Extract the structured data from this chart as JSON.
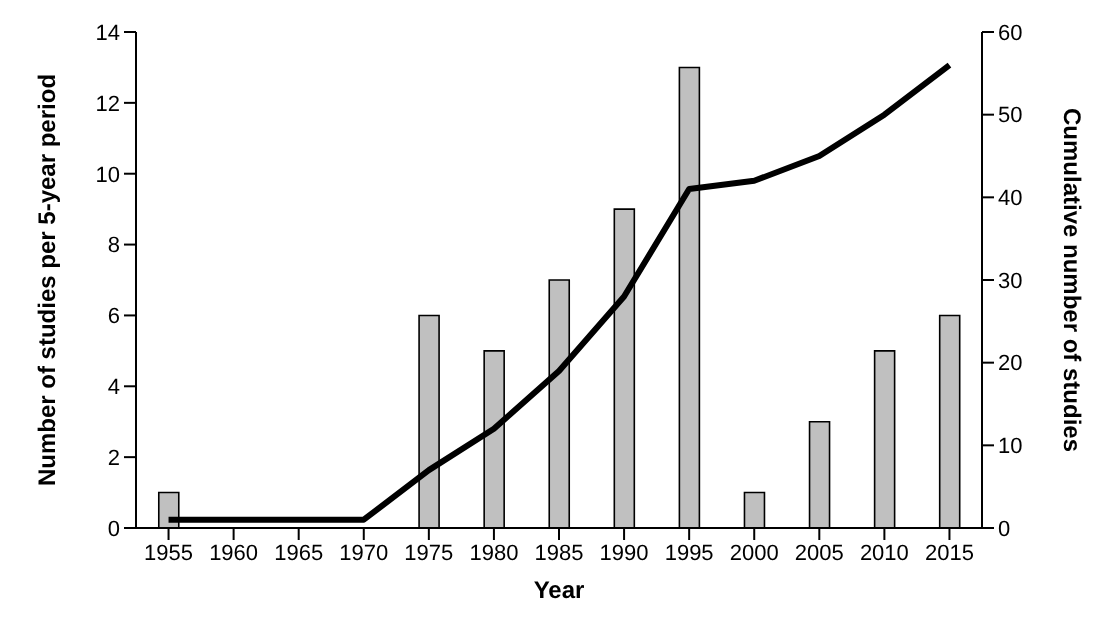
{
  "chart_data": {
    "type": "bar",
    "xlabel": "Year",
    "ylabel": "Number of studies per 5-year period",
    "y2label": "Cumulative number of studies",
    "categories": [
      "1955",
      "1960",
      "1965",
      "1970",
      "1975",
      "1980",
      "1985",
      "1990",
      "1995",
      "2000",
      "2005",
      "2010",
      "2015"
    ],
    "series": [
      {
        "color": "#c0c0c0",
        "values": [
          1,
          0,
          0,
          0,
          6,
          5,
          7,
          9,
          13,
          1,
          3,
          5,
          6
        ]
      },
      {
        "type": "line",
        "axis": "y2",
        "color": "#000000",
        "values": [
          1,
          1,
          1,
          1,
          7,
          12,
          19,
          28,
          41,
          42,
          45,
          50,
          56
        ]
      }
    ],
    "ylim": [
      0,
      14
    ],
    "yticks": [
      0,
      2,
      4,
      6,
      8,
      10,
      12,
      14
    ],
    "y2lim": [
      0,
      60
    ],
    "y2ticks": [
      0,
      10,
      20,
      30,
      40,
      50,
      60
    ],
    "grid": false,
    "legend": false,
    "marker": "none",
    "line_style": "solid"
  }
}
